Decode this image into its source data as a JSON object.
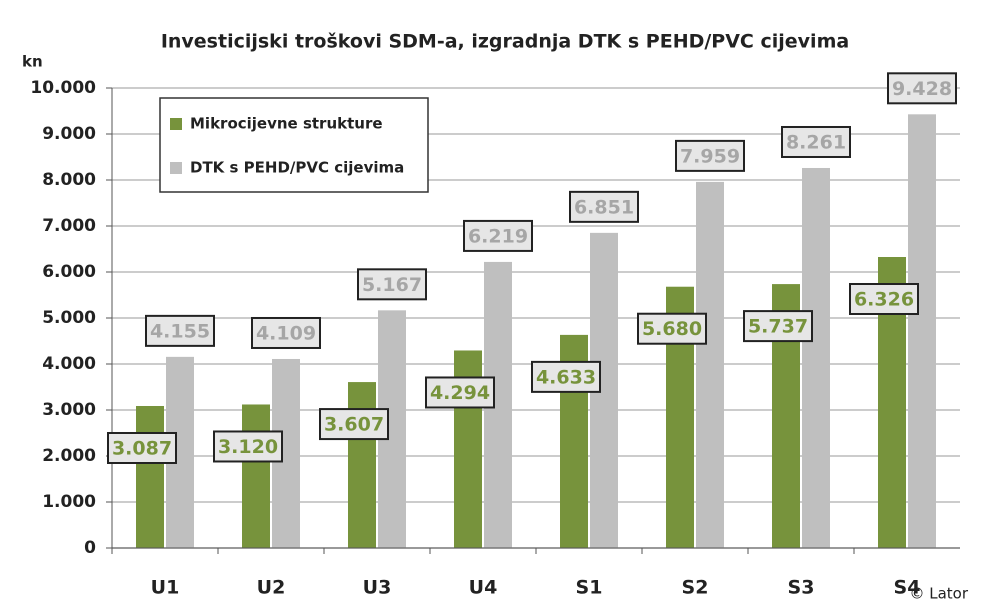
{
  "chart_data": {
    "type": "bar",
    "title": "Investicijski troškovi SDM-a, izgradnja DTK s PEHD/PVC cijevima",
    "y_axis_label": "kn",
    "annotation": "© Lator",
    "categories": [
      "U1",
      "U2",
      "U3",
      "U4",
      "S1",
      "S2",
      "S3",
      "S4"
    ],
    "series": [
      {
        "name": "Mikrocijevne strukture",
        "color": "#77933c",
        "values": [
          3087,
          3120,
          3607,
          4294,
          4633,
          5680,
          5737,
          6326
        ],
        "value_labels": [
          "3.087",
          "3.120",
          "3.607",
          "4.294",
          "4.633",
          "5.680",
          "5.737",
          "6.326"
        ]
      },
      {
        "name": "DTK s PEHD/PVC cijevima",
        "color": "#bfbfbf",
        "values": [
          4155,
          4109,
          5167,
          6219,
          6851,
          7959,
          8261,
          9428
        ],
        "value_labels": [
          "4.155",
          "4.109",
          "5.167",
          "6.219",
          "6.851",
          "7.959",
          "8.261",
          "9.428"
        ]
      }
    ],
    "ylim": [
      0,
      10000
    ],
    "yticks": [
      0,
      {
        "value": 1000,
        "label": "1.000"
      },
      {
        "value": 2000,
        "label": "2.000"
      },
      {
        "value": 3000,
        "label": "3.000"
      },
      {
        "value": 4000,
        "label": "4.000"
      },
      {
        "value": 5000,
        "label": "5.000"
      },
      {
        "value": 6000,
        "label": "6.000"
      },
      {
        "value": 7000,
        "label": "7.000"
      },
      {
        "value": 8000,
        "label": "8.000"
      },
      {
        "value": 9000,
        "label": "9.000"
      },
      {
        "value": 10000,
        "label": "10.000"
      }
    ],
    "grid": true,
    "legend": "upper left"
  }
}
